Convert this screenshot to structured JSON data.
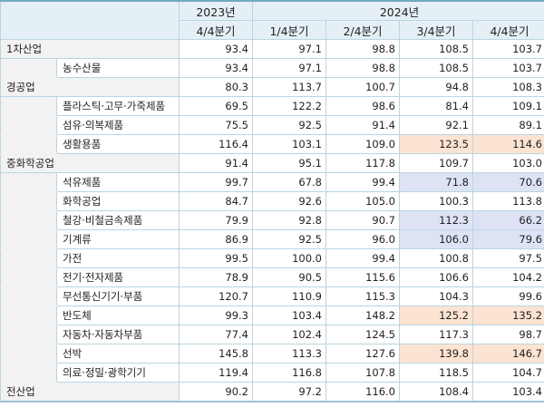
{
  "colors": {
    "up": "#fde3d1",
    "down": "#dde3f5",
    "header": "#e5f0f6",
    "category": "#f2f2f2"
  },
  "header": {
    "years": [
      {
        "label": "2023년",
        "span": 1
      },
      {
        "label": "2024년",
        "span": 4
      }
    ],
    "quarters": [
      "4/4분기",
      "1/4분기",
      "2/4분기",
      "3/4분기",
      "4/4분기"
    ]
  },
  "rows": [
    {
      "label": "1차산업",
      "level": 0,
      "values": [
        "93.4",
        "97.1",
        "98.8",
        "108.5",
        "103.7"
      ],
      "highlight": [
        null,
        null,
        null,
        null,
        null
      ]
    },
    {
      "label": "농수산물",
      "level": 1,
      "values": [
        "93.4",
        "97.1",
        "98.8",
        "108.5",
        "103.7"
      ],
      "highlight": [
        null,
        null,
        null,
        null,
        null
      ]
    },
    {
      "label": "경공업",
      "level": 0,
      "values": [
        "80.3",
        "113.7",
        "100.7",
        "94.8",
        "108.3"
      ],
      "highlight": [
        null,
        null,
        null,
        null,
        null
      ]
    },
    {
      "label": "플라스틱·고무·가죽제품",
      "level": 1,
      "values": [
        "69.5",
        "122.2",
        "98.6",
        "81.4",
        "109.1"
      ],
      "highlight": [
        null,
        null,
        null,
        null,
        null
      ]
    },
    {
      "label": "섬유·의복제품",
      "level": 1,
      "values": [
        "75.5",
        "92.5",
        "91.4",
        "92.1",
        "89.1"
      ],
      "highlight": [
        null,
        null,
        null,
        null,
        null
      ]
    },
    {
      "label": "생활용품",
      "level": 1,
      "values": [
        "116.4",
        "103.1",
        "109.0",
        "123.5",
        "114.6"
      ],
      "highlight": [
        null,
        null,
        null,
        "up",
        "up"
      ]
    },
    {
      "label": "중화학공업",
      "level": 0,
      "values": [
        "91.4",
        "95.1",
        "117.8",
        "109.7",
        "103.0"
      ],
      "highlight": [
        null,
        null,
        null,
        null,
        null
      ]
    },
    {
      "label": "석유제품",
      "level": 1,
      "values": [
        "99.7",
        "67.8",
        "99.4",
        "71.8",
        "70.6"
      ],
      "highlight": [
        null,
        null,
        null,
        "down",
        "down"
      ]
    },
    {
      "label": "화학공업",
      "level": 1,
      "values": [
        "84.7",
        "92.6",
        "105.0",
        "100.3",
        "113.8"
      ],
      "highlight": [
        null,
        null,
        null,
        null,
        null
      ]
    },
    {
      "label": "철강·비철금속제품",
      "level": 1,
      "values": [
        "79.9",
        "92.8",
        "90.7",
        "112.3",
        "66.2"
      ],
      "highlight": [
        null,
        null,
        null,
        "down",
        "down"
      ]
    },
    {
      "label": "기계류",
      "level": 1,
      "values": [
        "86.9",
        "92.5",
        "96.0",
        "106.0",
        "79.6"
      ],
      "highlight": [
        null,
        null,
        null,
        "down",
        "down"
      ]
    },
    {
      "label": "가전",
      "level": 1,
      "values": [
        "99.5",
        "100.0",
        "99.4",
        "100.8",
        "97.5"
      ],
      "highlight": [
        null,
        null,
        null,
        null,
        null
      ]
    },
    {
      "label": "전기·전자제품",
      "level": 1,
      "values": [
        "78.9",
        "90.5",
        "115.6",
        "106.6",
        "104.2"
      ],
      "highlight": [
        null,
        null,
        null,
        null,
        null
      ]
    },
    {
      "label": "무선통신기기·부품",
      "level": 1,
      "values": [
        "120.7",
        "110.9",
        "115.3",
        "104.3",
        "99.6"
      ],
      "highlight": [
        null,
        null,
        null,
        null,
        null
      ]
    },
    {
      "label": "반도체",
      "level": 1,
      "values": [
        "99.3",
        "103.4",
        "148.2",
        "125.2",
        "135.2"
      ],
      "highlight": [
        null,
        null,
        null,
        "up",
        "up"
      ]
    },
    {
      "label": "자동차·자동차부품",
      "level": 1,
      "values": [
        "77.4",
        "102.4",
        "124.5",
        "117.3",
        "98.7"
      ],
      "highlight": [
        null,
        null,
        null,
        null,
        null
      ]
    },
    {
      "label": "선박",
      "level": 1,
      "values": [
        "145.8",
        "113.3",
        "127.6",
        "139.8",
        "146.7"
      ],
      "highlight": [
        null,
        null,
        null,
        "up",
        "up"
      ]
    },
    {
      "label": "의료·정밀·광학기기",
      "level": 1,
      "values": [
        "119.4",
        "116.8",
        "107.8",
        "118.5",
        "104.7"
      ],
      "highlight": [
        null,
        null,
        null,
        null,
        null
      ]
    },
    {
      "label": "전산업",
      "level": 0,
      "values": [
        "90.2",
        "97.2",
        "116.0",
        "108.4",
        "103.4"
      ],
      "highlight": [
        null,
        null,
        null,
        null,
        null
      ]
    }
  ]
}
